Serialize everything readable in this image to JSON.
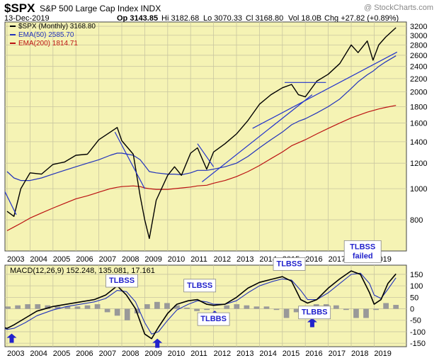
{
  "header": {
    "symbol": "$SPX",
    "name": "S&P 500 Large Cap Index INDX",
    "watermark": "@ StockCharts.com",
    "date": "13-Dec-2019",
    "open": "Op 3143.85",
    "high": "Hi 3182.68",
    "low": "Lo 3070.33",
    "close": "Cl 3168.80",
    "volume": "Vol 18.0B",
    "change": "Chg +27.82 (+0.89%)"
  },
  "colors": {
    "panel_bg": "#f5f3b4",
    "price": "#000000",
    "ema50": "#2233bb",
    "ema200": "#bb1111",
    "trendline": "#2233cc",
    "histogram": "#999999",
    "callout": "#2222cc"
  },
  "chart_data": [
    {
      "type": "line",
      "title": "$SPX (Monthly) 3168.80",
      "y_scale": "log",
      "ylim": [
        640,
        3300
      ],
      "x_tick_labels": [
        "2003",
        "2004",
        "2005",
        "2006",
        "2007",
        "2008",
        "2009",
        "2010",
        "2011",
        "2012",
        "2013",
        "2014",
        "2015",
        "2016",
        "2017",
        "2018",
        "2019"
      ],
      "y_tick_labels": [
        "800",
        "1000",
        "1200",
        "1400",
        "1600",
        "1800",
        "2000",
        "2200",
        "2400",
        "2600",
        "2800",
        "3000",
        "3200"
      ],
      "y_ticks": [
        800,
        1000,
        1200,
        1400,
        1600,
        1800,
        2000,
        2200,
        2400,
        2600,
        2800,
        3000,
        3200
      ],
      "legend_items": [
        {
          "label": "$SPX (Monthly) 3168.80",
          "series": "price"
        },
        {
          "label": "EMA(50) 2585.70",
          "series": "ema50"
        },
        {
          "label": "EMA(200) 1814.71",
          "series": "ema200"
        }
      ],
      "x": [
        2003.0,
        2003.3,
        2003.6,
        2004.0,
        2004.5,
        2005.0,
        2005.5,
        2006.0,
        2006.5,
        2007.0,
        2007.5,
        2007.8,
        2008.0,
        2008.5,
        2008.8,
        2009.0,
        2009.2,
        2009.5,
        2010.0,
        2010.3,
        2010.6,
        2011.0,
        2011.3,
        2011.7,
        2012.0,
        2012.5,
        2013.0,
        2013.5,
        2014.0,
        2014.5,
        2015.0,
        2015.4,
        2015.7,
        2016.0,
        2016.5,
        2017.0,
        2017.5,
        2018.0,
        2018.3,
        2018.7,
        2018.95,
        2019.2,
        2019.5,
        2019.95
      ],
      "series": [
        {
          "name": "$SPX (Monthly) 3168.80",
          "key": "price",
          "values": [
            850,
            820,
            1000,
            1120,
            1110,
            1190,
            1210,
            1270,
            1280,
            1420,
            1500,
            1550,
            1410,
            1280,
            950,
            800,
            700,
            920,
            1100,
            1170,
            1100,
            1290,
            1340,
            1150,
            1300,
            1380,
            1480,
            1630,
            1830,
            1960,
            2060,
            2110,
            1960,
            1930,
            2160,
            2270,
            2450,
            2800,
            2650,
            2880,
            2510,
            2800,
            2960,
            3168
          ]
        },
        {
          "name": "EMA(50) 2585.70",
          "key": "ema50",
          "values": [
            1130,
            1080,
            1060,
            1060,
            1080,
            1110,
            1140,
            1170,
            1200,
            1230,
            1270,
            1290,
            1290,
            1270,
            1230,
            1180,
            1130,
            1120,
            1110,
            1110,
            1105,
            1120,
            1140,
            1140,
            1150,
            1170,
            1200,
            1260,
            1340,
            1420,
            1500,
            1580,
            1620,
            1650,
            1720,
            1800,
            1900,
            2050,
            2150,
            2260,
            2320,
            2400,
            2480,
            2590
          ]
        },
        {
          "name": "EMA(200) 1814.71",
          "key": "ema200",
          "values": [
            740,
            760,
            780,
            810,
            840,
            870,
            900,
            930,
            950,
            975,
            1000,
            1010,
            1015,
            1020,
            1015,
            1005,
            1000,
            995,
            995,
            1000,
            1005,
            1012,
            1020,
            1025,
            1040,
            1060,
            1090,
            1130,
            1180,
            1240,
            1300,
            1360,
            1390,
            1420,
            1480,
            1540,
            1600,
            1660,
            1690,
            1730,
            1750,
            1770,
            1790,
            1815
          ]
        }
      ],
      "trendlines": [
        {
          "x": [
            2002.5,
            2003.4
          ],
          "y": [
            1120,
            830
          ]
        },
        {
          "x": [
            2007.7,
            2009.0
          ],
          "y": [
            1500,
            1000
          ]
        },
        {
          "x": [
            2011.3,
            2012.0
          ],
          "y": [
            1380,
            1170
          ]
        },
        {
          "x": [
            2011.5,
            2016.3
          ],
          "y": [
            1050,
            1960
          ]
        },
        {
          "x": [
            2015.1,
            2016.9
          ],
          "y": [
            2140,
            2140
          ]
        },
        {
          "x": [
            2013.7,
            2020.0
          ],
          "y": [
            1540,
            2660
          ]
        }
      ]
    },
    {
      "type": "line",
      "title": "MACD(12,26,9) 152.248, 135.081, 17.161",
      "ylim": [
        -165,
        190
      ],
      "x_tick_labels": [
        "2003",
        "2004",
        "2005",
        "2006",
        "2007",
        "2008",
        "2009",
        "2010",
        "2011",
        "2012",
        "2013",
        "2014",
        "2015",
        "2016",
        "2017",
        "2018",
        "2019"
      ],
      "y_tick_labels": [
        "150",
        "100",
        "50",
        "0",
        "-50",
        "-100",
        "-150"
      ],
      "y_ticks": [
        150,
        100,
        50,
        0,
        -50,
        -100,
        -150
      ],
      "x": [
        2002.6,
        2003.0,
        2003.3,
        2003.8,
        2004.3,
        2005.0,
        2005.6,
        2006.2,
        2006.8,
        2007.3,
        2007.8,
        2008.2,
        2008.6,
        2009.0,
        2009.3,
        2009.6,
        2010.0,
        2010.4,
        2010.9,
        2011.3,
        2011.7,
        2012.0,
        2012.5,
        2013.0,
        2013.5,
        2014.0,
        2014.6,
        2015.0,
        2015.4,
        2015.8,
        2016.1,
        2016.5,
        2017.0,
        2017.5,
        2018.0,
        2018.4,
        2018.8,
        2019.0,
        2019.3,
        2019.6,
        2019.95
      ],
      "series": [
        {
          "name": "MACD",
          "key": "macd",
          "values": [
            -75,
            -85,
            -70,
            -40,
            -10,
            10,
            20,
            30,
            40,
            60,
            100,
            60,
            0,
            -110,
            -130,
            -80,
            -20,
            20,
            35,
            40,
            20,
            15,
            20,
            50,
            90,
            115,
            130,
            140,
            120,
            40,
            25,
            40,
            90,
            130,
            165,
            150,
            70,
            20,
            40,
            110,
            152
          ]
        },
        {
          "name": "Signal",
          "key": "signal",
          "values": [
            -70,
            -90,
            -85,
            -60,
            -30,
            -5,
            10,
            20,
            30,
            45,
            80,
            75,
            30,
            -60,
            -110,
            -100,
            -50,
            -5,
            20,
            35,
            30,
            20,
            20,
            35,
            70,
            100,
            120,
            130,
            125,
            80,
            40,
            40,
            70,
            110,
            150,
            155,
            110,
            60,
            45,
            85,
            135
          ]
        }
      ],
      "histogram": [
        5,
        10,
        15,
        20,
        20,
        15,
        10,
        10,
        10,
        15,
        20,
        -15,
        -30,
        -50,
        -20,
        20,
        30,
        25,
        15,
        5,
        -10,
        -5,
        0,
        15,
        20,
        15,
        10,
        10,
        -5,
        -40,
        -15,
        0,
        20,
        20,
        15,
        -5,
        -40,
        -40,
        -5,
        25,
        17
      ],
      "callouts": [
        {
          "text": "TLBSS",
          "x": 2008.0,
          "y": 122
        },
        {
          "text": "TLBSS",
          "x": 2011.4,
          "y": 101
        },
        {
          "text": "TLBBS",
          "x": 2012.0,
          "y": -45
        },
        {
          "text": "TLBSS",
          "x": 2015.3,
          "y": 195
        },
        {
          "text": "TLBBS",
          "x": 2016.4,
          "y": -16
        },
        {
          "text": "TLBSS failed",
          "x": 2018.5,
          "y": 249
        }
      ],
      "arrows": [
        {
          "x": 2003.2,
          "y": -108,
          "dir": "up"
        },
        {
          "x": 2007.95,
          "y": 100,
          "dir": "down"
        },
        {
          "x": 2009.55,
          "y": -130,
          "dir": "up"
        },
        {
          "x": 2011.4,
          "y": 82,
          "dir": "down"
        },
        {
          "x": 2012.05,
          "y": -8,
          "dir": "up"
        },
        {
          "x": 2015.3,
          "y": 175,
          "dir": "down"
        },
        {
          "x": 2016.3,
          "y": -40,
          "dir": "up"
        },
        {
          "x": 2018.9,
          "y": 200,
          "dir": "down"
        }
      ]
    }
  ]
}
